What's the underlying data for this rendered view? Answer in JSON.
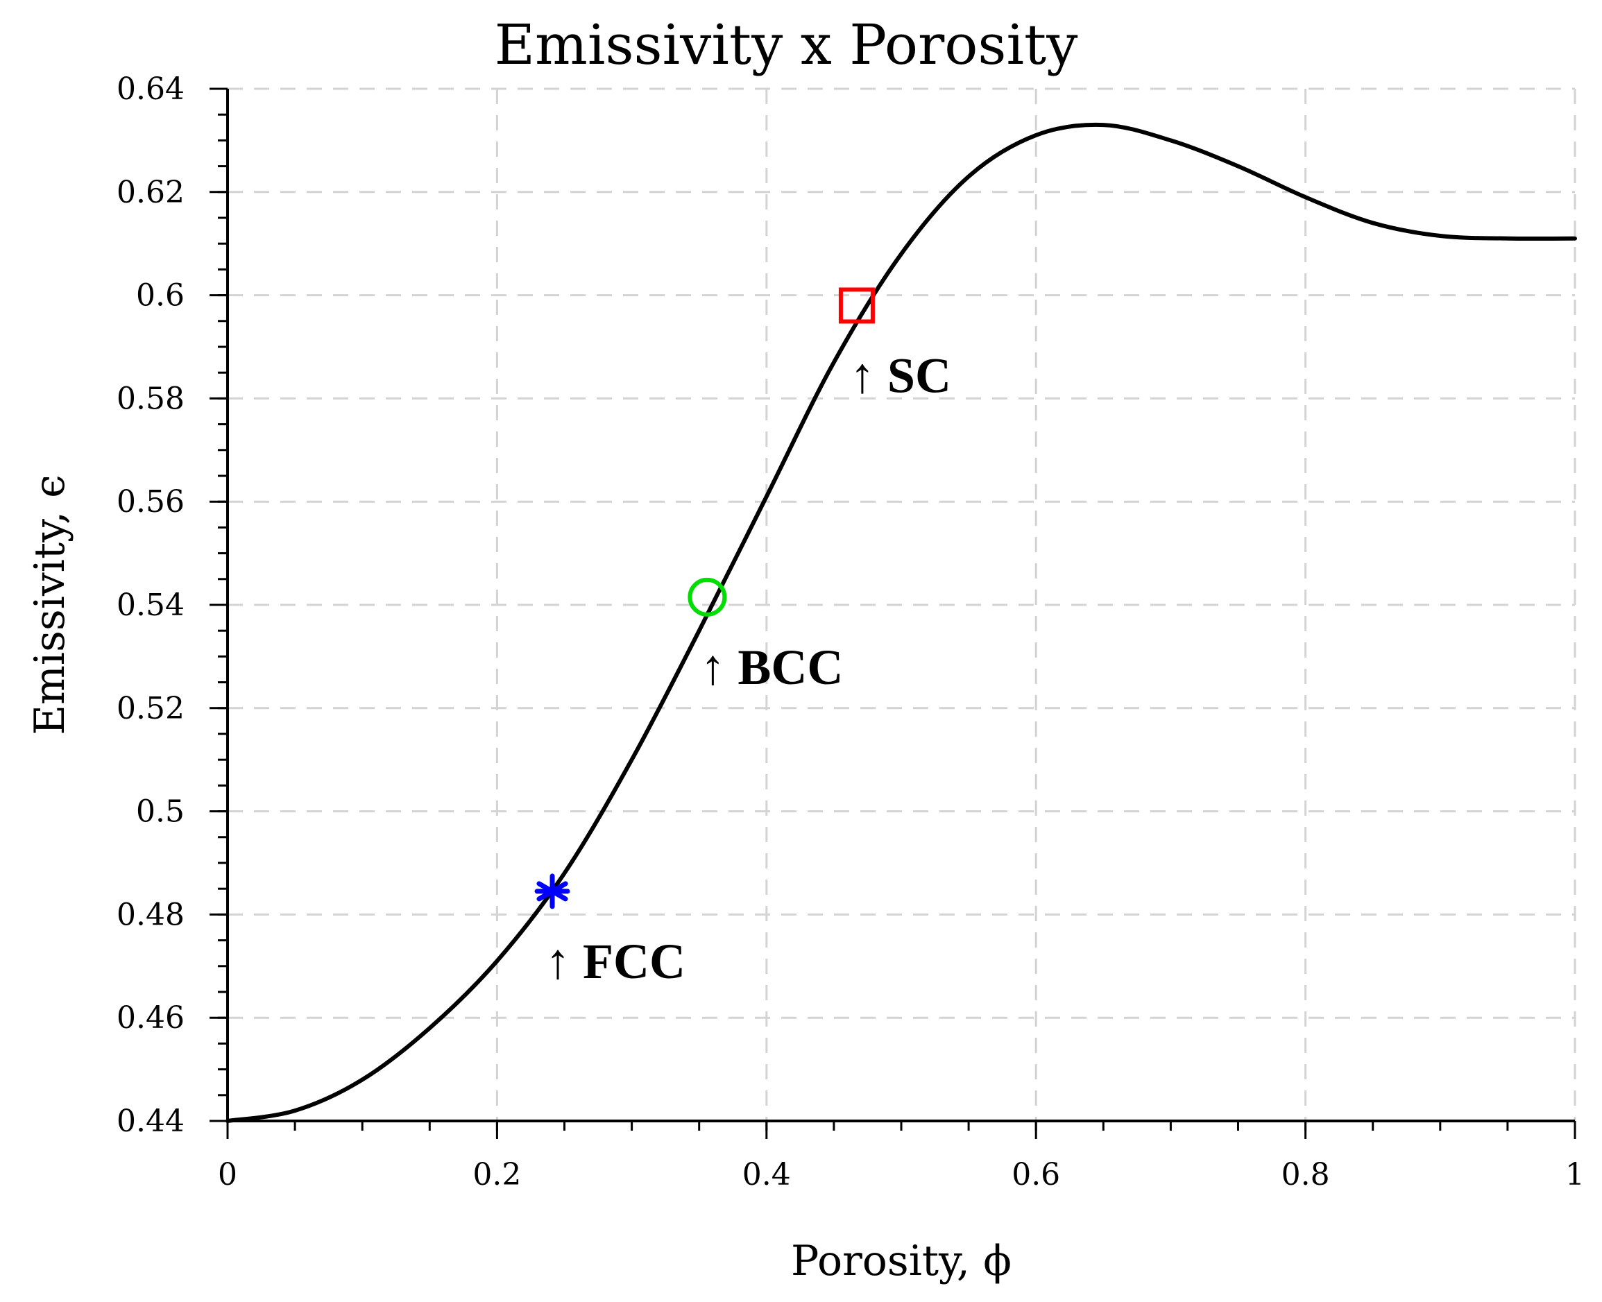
{
  "chart_data": {
    "type": "line",
    "title": "Emissivity x Porosity",
    "xlabel": "Porosity, ϕ",
    "ylabel": "Emissivity, ϵ",
    "xlim": [
      0,
      1
    ],
    "ylim": [
      0.44,
      0.64
    ],
    "grid": true,
    "x_ticks": [
      0,
      0.2,
      0.4,
      0.6,
      0.8,
      1
    ],
    "x_tick_labels": [
      "0",
      "0.2",
      "0.4",
      "0.6",
      "0.8",
      "1"
    ],
    "y_ticks": [
      0.44,
      0.46,
      0.48,
      0.5,
      0.52,
      0.54,
      0.56,
      0.58,
      0.6,
      0.62,
      0.64
    ],
    "y_tick_labels": [
      "0.44",
      "0.46",
      "0.48",
      "0.5",
      "0.52",
      "0.54",
      "0.56",
      "0.58",
      "0.6",
      "0.62",
      "0.64"
    ],
    "series": [
      {
        "name": "emissivity-curve",
        "color": "#000000",
        "x": [
          0,
          0.05,
          0.1,
          0.15,
          0.2,
          0.25,
          0.3,
          0.35,
          0.4,
          0.45,
          0.5,
          0.55,
          0.6,
          0.65,
          0.7,
          0.75,
          0.8,
          0.85,
          0.9,
          0.95,
          1.0
        ],
        "y": [
          0.44,
          0.442,
          0.448,
          0.458,
          0.471,
          0.488,
          0.51,
          0.535,
          0.561,
          0.587,
          0.608,
          0.623,
          0.631,
          0.633,
          0.63,
          0.625,
          0.619,
          0.614,
          0.6115,
          0.611,
          0.611
        ]
      }
    ],
    "markers": [
      {
        "name": "fcc",
        "label": "↑ FCC",
        "x": 0.241,
        "y": 0.4845,
        "symbol": "asterisk",
        "color": "#0000ff"
      },
      {
        "name": "bcc",
        "label": "↑ BCC",
        "x": 0.356,
        "y": 0.5415,
        "symbol": "circle",
        "color": "#00dd00"
      },
      {
        "name": "sc",
        "label": "↑ SC",
        "x": 0.467,
        "y": 0.598,
        "symbol": "square",
        "color": "#ff0000"
      }
    ]
  }
}
